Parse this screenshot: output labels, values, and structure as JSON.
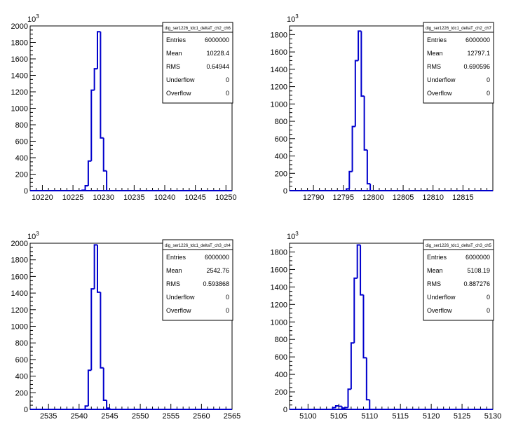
{
  "chart_data": [
    {
      "type": "bar",
      "title": "dig_ser1226_tdc1_deltaT_ch2_ch6",
      "y_exponent": "10^3",
      "xlim": [
        10218,
        10251
      ],
      "ylim": [
        0,
        2000
      ],
      "xticks": [
        10220,
        10225,
        10230,
        10235,
        10240,
        10245,
        10250
      ],
      "yticks": [
        0,
        200,
        400,
        600,
        800,
        1000,
        1200,
        1400,
        1600,
        1800,
        2000
      ],
      "bin_width": 0.5,
      "x": [
        10226.5,
        10227.0,
        10227.5,
        10228.0,
        10228.5,
        10229.0,
        10229.5,
        10230.0
      ],
      "values": [
        5,
        60,
        360,
        1220,
        1480,
        1930,
        640,
        240
      ],
      "color": "#0000cc",
      "stats": [
        {
          "label": "Entries",
          "value": "6000000"
        },
        {
          "label": "Mean",
          "value": "10228.4"
        },
        {
          "label": "RMS",
          "value": "0.64944"
        },
        {
          "label": "Underflow",
          "value": "0"
        },
        {
          "label": "Overflow",
          "value": "0"
        }
      ]
    },
    {
      "type": "bar",
      "title": "dig_ser1226_tdc1_deltaT_ch2_ch7",
      "y_exponent": "10^3",
      "xlim": [
        12786,
        12820
      ],
      "ylim": [
        0,
        1900
      ],
      "xticks": [
        12790,
        12795,
        12800,
        12805,
        12810,
        12815
      ],
      "yticks": [
        0,
        200,
        400,
        600,
        800,
        1000,
        1200,
        1400,
        1600,
        1800
      ],
      "bin_width": 0.5,
      "x": [
        12795.5,
        12796.0,
        12796.5,
        12797.0,
        12797.5,
        12798.0,
        12798.5,
        12799.0
      ],
      "values": [
        20,
        220,
        740,
        1500,
        1840,
        1090,
        470,
        80
      ],
      "color": "#0000cc",
      "stats": [
        {
          "label": "Entries",
          "value": "6000000"
        },
        {
          "label": "Mean",
          "value": "12797.1"
        },
        {
          "label": "RMS",
          "value": "0.690596"
        },
        {
          "label": "Underflow",
          "value": "0"
        },
        {
          "label": "Overflow",
          "value": "0"
        }
      ]
    },
    {
      "type": "bar",
      "title": "dig_ser1226_tdc1_deltaT_ch3_ch4",
      "y_exponent": "10^3",
      "xlim": [
        2532,
        2565
      ],
      "ylim": [
        0,
        2000
      ],
      "xticks": [
        2535,
        2540,
        2545,
        2550,
        2555,
        2560,
        2565
      ],
      "yticks": [
        0,
        200,
        400,
        600,
        800,
        1000,
        1200,
        1400,
        1600,
        1800,
        2000
      ],
      "bin_width": 0.5,
      "x": [
        2541.0,
        2541.5,
        2542.0,
        2542.5,
        2543.0,
        2543.5,
        2544.0,
        2544.5
      ],
      "values": [
        40,
        470,
        1450,
        1980,
        1410,
        500,
        110,
        15
      ],
      "color": "#0000cc",
      "stats": [
        {
          "label": "Entries",
          "value": "6000000"
        },
        {
          "label": "Mean",
          "value": "2542.76"
        },
        {
          "label": "RMS",
          "value": "0.593868"
        },
        {
          "label": "Underflow",
          "value": "0"
        },
        {
          "label": "Overflow",
          "value": "0"
        }
      ]
    },
    {
      "type": "bar",
      "title": "dig_ser1226_tdc1_deltaT_ch3_ch5",
      "y_exponent": "10^3",
      "xlim": [
        5097,
        5130
      ],
      "ylim": [
        0,
        1900
      ],
      "xticks": [
        5100,
        5105,
        5110,
        5115,
        5120,
        5125,
        5130
      ],
      "yticks": [
        0,
        200,
        400,
        600,
        800,
        1000,
        1200,
        1400,
        1600,
        1800
      ],
      "bin_width": 0.5,
      "x": [
        5104.0,
        5104.5,
        5105.0,
        5105.5,
        5106.0,
        5106.5,
        5107.0,
        5107.5,
        5108.0,
        5108.5,
        5109.0,
        5109.5
      ],
      "values": [
        20,
        40,
        35,
        15,
        20,
        230,
        760,
        1500,
        1880,
        1310,
        590,
        110
      ],
      "color": "#0000cc",
      "stats": [
        {
          "label": "Entries",
          "value": "6000000"
        },
        {
          "label": "Mean",
          "value": "5108.19"
        },
        {
          "label": "RMS",
          "value": "0.887276"
        },
        {
          "label": "Underflow",
          "value": "0"
        },
        {
          "label": "Overflow",
          "value": "0"
        }
      ]
    }
  ]
}
